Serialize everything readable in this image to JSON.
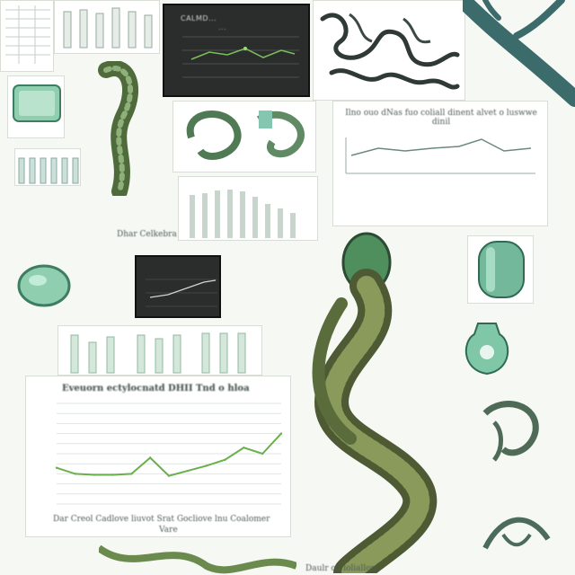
{
  "collage": {
    "top_dark_panel": {
      "title": "CALMD...",
      "subtitle": "..."
    },
    "mid_dark_panel": {
      "label": "..."
    },
    "upper_right_caption": "Ilno ouo dNas fuo coliall dinent alvet o luswwe dinil",
    "line_chart_main": {
      "title": "Eveuorn ectylocnatd DHII Tnd o hloa",
      "footer": "Dar Creol Cadlove liuvot Srat Gocliove lnu Coalomer",
      "footer2": "Vare"
    },
    "side_label": "Dhar Celkebra",
    "bottom_caption": "Daulr oa loliallom"
  },
  "chart_data": {
    "type": "line",
    "title": "Eveuorn ectylocnatd DHII Tnd o hloa",
    "xlabel": "Vare",
    "ylabel": "",
    "x": [
      0,
      1,
      2,
      3,
      4,
      5,
      6,
      7,
      8,
      9,
      10,
      11,
      12
    ],
    "values": [
      36,
      30,
      29,
      29,
      30,
      46,
      28,
      33,
      38,
      44,
      56,
      50,
      70
    ],
    "ylim": [
      0,
      100
    ]
  },
  "colors": {
    "green_line": "#6ab04c",
    "jade": "#4e9d78",
    "dark_vine": "#3e4a2c"
  }
}
